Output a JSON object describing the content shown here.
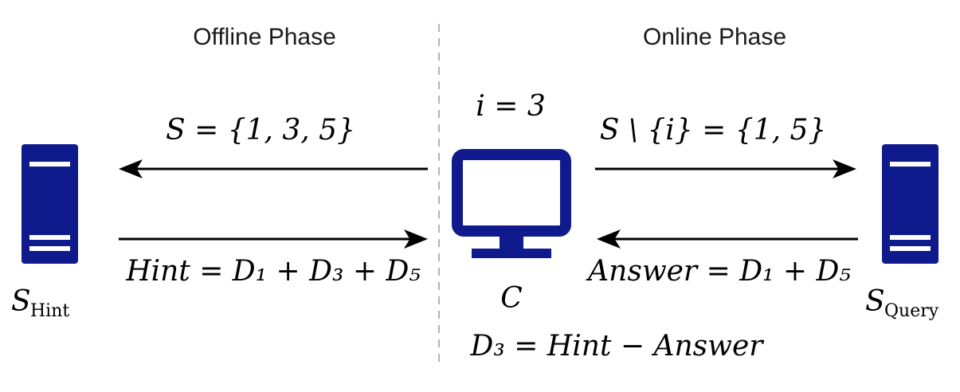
{
  "headings": {
    "offline": "Offline Phase",
    "online": "Online Phase"
  },
  "labels": {
    "set_s": "S = {1, 3, 5}",
    "index": "i = 3",
    "set_minus": "S \\ {i} = {1, 5}",
    "hint_formula": "Hint = D₁ + D₃ + D₅",
    "answer_formula": "Answer = D₁ + D₅",
    "client": "C",
    "result_formula": "D₃ = Hint − Answer"
  },
  "servers": {
    "hint": {
      "symbol": "S",
      "subscript": "Hint"
    },
    "query": {
      "symbol": "S",
      "subscript": "Query"
    }
  },
  "icons": {
    "server": "server-icon",
    "client": "monitor-icon"
  },
  "colors": {
    "device": "#0f1a8c",
    "arrow": "#000000",
    "divider": "#b3b3b3"
  }
}
